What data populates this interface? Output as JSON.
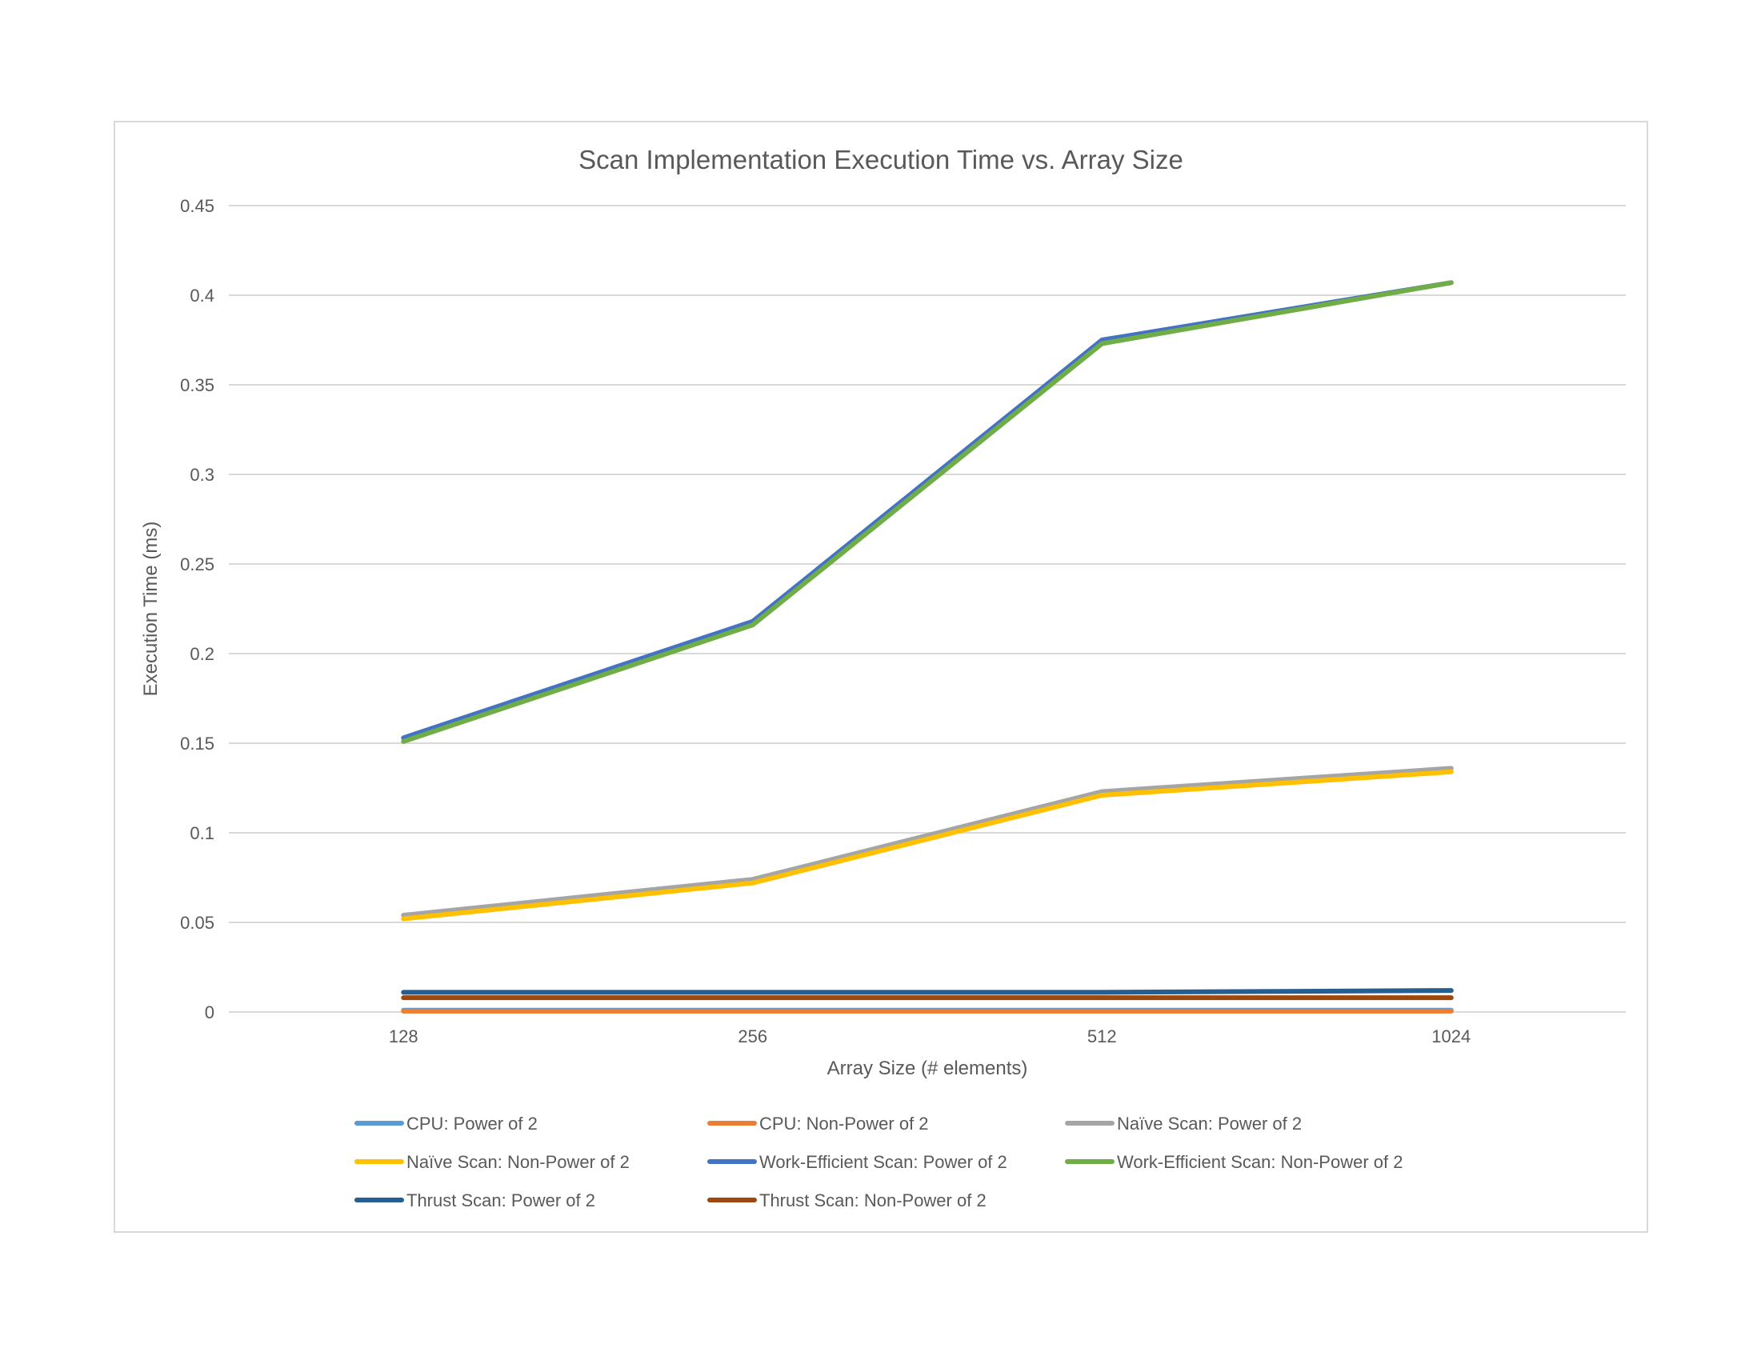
{
  "chart_data": {
    "type": "line",
    "title": "Scan Implementation Execution Time vs. Array Size",
    "xlabel": "Array Size (# elements)",
    "ylabel": "Execution Time (ms)",
    "categories": [
      "128",
      "256",
      "512",
      "1024"
    ],
    "ylim": [
      0,
      0.45
    ],
    "yticks": [
      0,
      0.05,
      0.1,
      0.15,
      0.2,
      0.25,
      0.3,
      0.35,
      0.4,
      0.45
    ],
    "ytick_labels": [
      "0",
      "0.05",
      "0.1",
      "0.15",
      "0.2",
      "0.25",
      "0.3",
      "0.35",
      "0.4",
      "0.45"
    ],
    "grid": true,
    "legend_position": "bottom",
    "series": [
      {
        "name": "CPU: Power of 2",
        "color": "#5b9bd5",
        "values": [
          0.001,
          0.001,
          0.001,
          0.001
        ]
      },
      {
        "name": "CPU: Non-Power of 2",
        "color": "#ed7d31",
        "values": [
          0.0005,
          0.0005,
          0.0005,
          0.0005
        ]
      },
      {
        "name": "Naïve Scan: Power of 2",
        "color": "#a5a5a5",
        "values": [
          0.054,
          0.074,
          0.123,
          0.136
        ]
      },
      {
        "name": "Naïve Scan: Non-Power of 2",
        "color": "#ffc000",
        "values": [
          0.052,
          0.072,
          0.121,
          0.134
        ]
      },
      {
        "name": "Work-Efficient Scan: Power of 2",
        "color": "#4472c4",
        "values": [
          0.153,
          0.218,
          0.375,
          0.407
        ]
      },
      {
        "name": "Work-Efficient Scan: Non-Power of 2",
        "color": "#70ad47",
        "values": [
          0.151,
          0.216,
          0.373,
          0.407
        ]
      },
      {
        "name": "Thrust Scan: Power of 2",
        "color": "#255e91",
        "values": [
          0.011,
          0.011,
          0.011,
          0.012
        ]
      },
      {
        "name": "Thrust Scan: Non-Power of 2",
        "color": "#9e480e",
        "values": [
          0.008,
          0.008,
          0.008,
          0.008
        ]
      }
    ]
  }
}
